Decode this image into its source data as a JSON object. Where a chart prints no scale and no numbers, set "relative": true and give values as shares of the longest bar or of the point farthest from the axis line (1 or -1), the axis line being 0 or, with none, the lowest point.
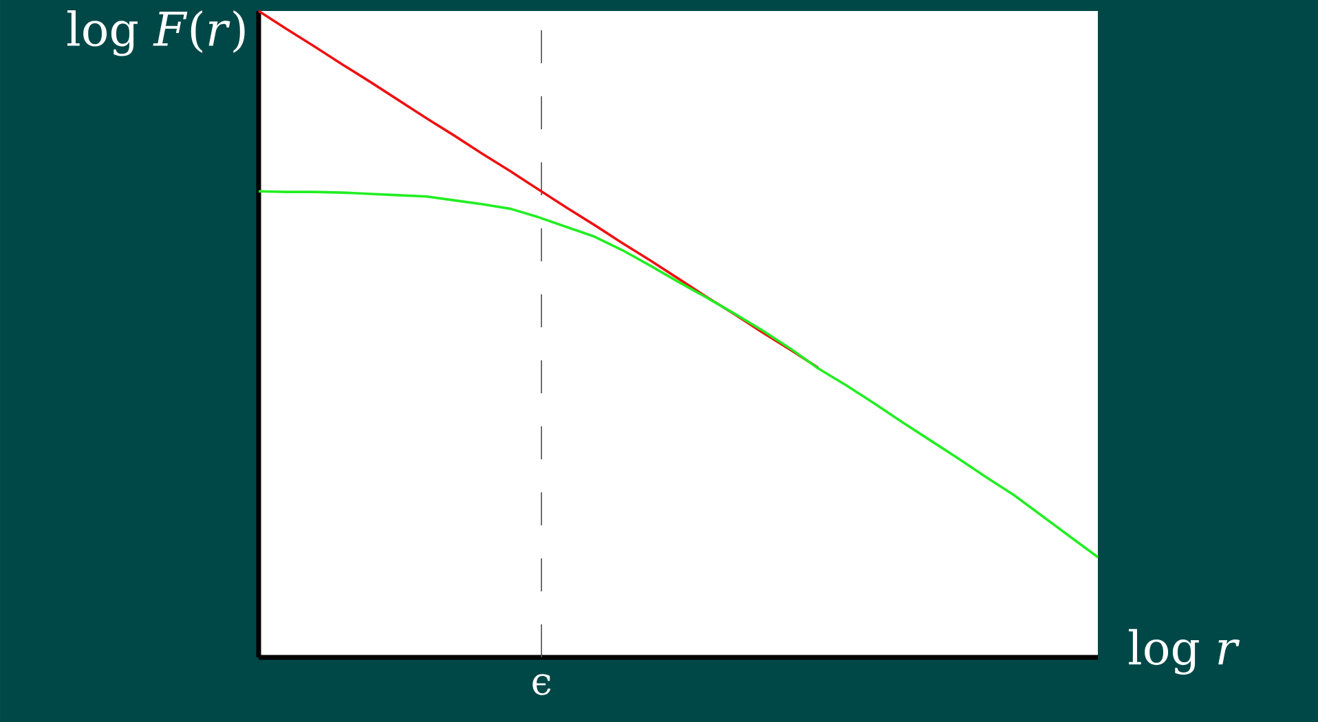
{
  "chart_data": {
    "type": "line",
    "xlabel": "log *r*",
    "ylabel": "log *F*(*r*)",
    "relative": true,
    "categories": [
      null,
      null,
      null,
      null,
      null,
      null,
      null,
      null,
      null,
      null,
      null,
      null,
      null,
      null,
      null,
      null,
      null,
      null,
      null,
      null,
      null,
      null,
      null,
      null,
      null,
      null,
      null,
      null,
      null,
      null,
      null
    ],
    "annotations": [
      "ϵ"
    ],
    "series": [
      {
        "color": "#ee1111",
        "values": [
          1.0,
          0.972,
          0.945,
          0.917,
          0.89,
          0.862,
          0.834,
          0.807,
          0.779,
          0.752,
          0.724,
          0.696,
          0.669,
          0.641,
          0.614,
          0.586,
          0.558,
          0.531,
          0.503,
          0.476,
          0.448,
          null,
          null,
          null,
          null,
          null,
          null,
          null,
          null,
          null,
          null
        ]
      },
      {
        "color": "#22ee22",
        "values": [
          0.721,
          0.72,
          0.72,
          0.719,
          0.717,
          0.715,
          0.713,
          0.707,
          0.701,
          0.694,
          0.681,
          0.666,
          0.651,
          0.63,
          0.606,
          0.581,
          0.557,
          0.532,
          0.506,
          0.478,
          0.447,
          0.421,
          0.393,
          0.364,
          0.336,
          0.308,
          0.279,
          0.251,
          0.219,
          0.187,
          0.155
        ]
      }
    ]
  }
}
